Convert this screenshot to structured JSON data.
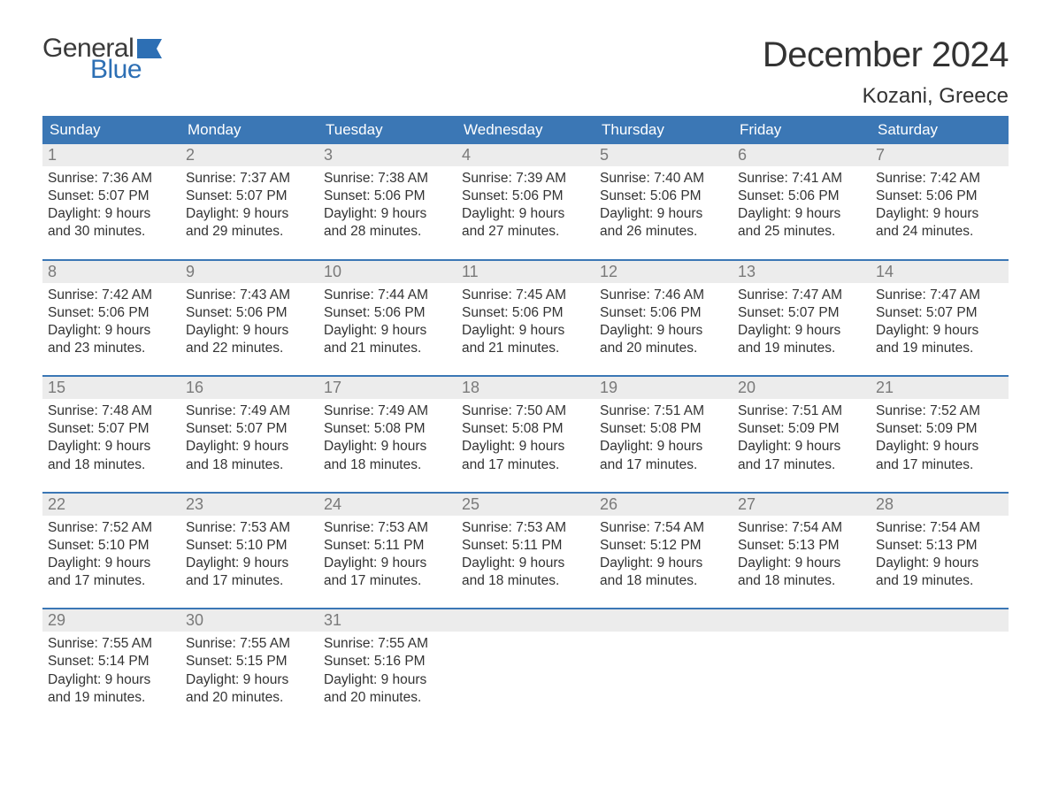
{
  "brand": {
    "text_general": "General",
    "text_blue": "Blue",
    "general_color": "#3a3a3a",
    "blue_color": "#2d6fb4",
    "flag_color": "#2d6fb4"
  },
  "title": "December 2024",
  "location": "Kozani, Greece",
  "colors": {
    "header_bg": "#3b77b5",
    "header_text": "#ffffff",
    "daynum_strip_bg": "#ececec",
    "daynum_text": "#7a7a7a",
    "body_text": "#333333",
    "week_divider": "#3b77b5",
    "page_bg": "#ffffff"
  },
  "typography": {
    "title_fontsize": 40,
    "location_fontsize": 24,
    "weekday_fontsize": 17,
    "daynum_fontsize": 18,
    "body_fontsize": 15.5,
    "logo_fontsize": 30,
    "font_family": "Arial"
  },
  "weekdays": [
    "Sunday",
    "Monday",
    "Tuesday",
    "Wednesday",
    "Thursday",
    "Friday",
    "Saturday"
  ],
  "weeks": [
    {
      "days": [
        {
          "num": "1",
          "sunrise": "Sunrise: 7:36 AM",
          "sunset": "Sunset: 5:07 PM",
          "daylight1": "Daylight: 9 hours",
          "daylight2": "and 30 minutes."
        },
        {
          "num": "2",
          "sunrise": "Sunrise: 7:37 AM",
          "sunset": "Sunset: 5:07 PM",
          "daylight1": "Daylight: 9 hours",
          "daylight2": "and 29 minutes."
        },
        {
          "num": "3",
          "sunrise": "Sunrise: 7:38 AM",
          "sunset": "Sunset: 5:06 PM",
          "daylight1": "Daylight: 9 hours",
          "daylight2": "and 28 minutes."
        },
        {
          "num": "4",
          "sunrise": "Sunrise: 7:39 AM",
          "sunset": "Sunset: 5:06 PM",
          "daylight1": "Daylight: 9 hours",
          "daylight2": "and 27 minutes."
        },
        {
          "num": "5",
          "sunrise": "Sunrise: 7:40 AM",
          "sunset": "Sunset: 5:06 PM",
          "daylight1": "Daylight: 9 hours",
          "daylight2": "and 26 minutes."
        },
        {
          "num": "6",
          "sunrise": "Sunrise: 7:41 AM",
          "sunset": "Sunset: 5:06 PM",
          "daylight1": "Daylight: 9 hours",
          "daylight2": "and 25 minutes."
        },
        {
          "num": "7",
          "sunrise": "Sunrise: 7:42 AM",
          "sunset": "Sunset: 5:06 PM",
          "daylight1": "Daylight: 9 hours",
          "daylight2": "and 24 minutes."
        }
      ]
    },
    {
      "days": [
        {
          "num": "8",
          "sunrise": "Sunrise: 7:42 AM",
          "sunset": "Sunset: 5:06 PM",
          "daylight1": "Daylight: 9 hours",
          "daylight2": "and 23 minutes."
        },
        {
          "num": "9",
          "sunrise": "Sunrise: 7:43 AM",
          "sunset": "Sunset: 5:06 PM",
          "daylight1": "Daylight: 9 hours",
          "daylight2": "and 22 minutes."
        },
        {
          "num": "10",
          "sunrise": "Sunrise: 7:44 AM",
          "sunset": "Sunset: 5:06 PM",
          "daylight1": "Daylight: 9 hours",
          "daylight2": "and 21 minutes."
        },
        {
          "num": "11",
          "sunrise": "Sunrise: 7:45 AM",
          "sunset": "Sunset: 5:06 PM",
          "daylight1": "Daylight: 9 hours",
          "daylight2": "and 21 minutes."
        },
        {
          "num": "12",
          "sunrise": "Sunrise: 7:46 AM",
          "sunset": "Sunset: 5:06 PM",
          "daylight1": "Daylight: 9 hours",
          "daylight2": "and 20 minutes."
        },
        {
          "num": "13",
          "sunrise": "Sunrise: 7:47 AM",
          "sunset": "Sunset: 5:07 PM",
          "daylight1": "Daylight: 9 hours",
          "daylight2": "and 19 minutes."
        },
        {
          "num": "14",
          "sunrise": "Sunrise: 7:47 AM",
          "sunset": "Sunset: 5:07 PM",
          "daylight1": "Daylight: 9 hours",
          "daylight2": "and 19 minutes."
        }
      ]
    },
    {
      "days": [
        {
          "num": "15",
          "sunrise": "Sunrise: 7:48 AM",
          "sunset": "Sunset: 5:07 PM",
          "daylight1": "Daylight: 9 hours",
          "daylight2": "and 18 minutes."
        },
        {
          "num": "16",
          "sunrise": "Sunrise: 7:49 AM",
          "sunset": "Sunset: 5:07 PM",
          "daylight1": "Daylight: 9 hours",
          "daylight2": "and 18 minutes."
        },
        {
          "num": "17",
          "sunrise": "Sunrise: 7:49 AM",
          "sunset": "Sunset: 5:08 PM",
          "daylight1": "Daylight: 9 hours",
          "daylight2": "and 18 minutes."
        },
        {
          "num": "18",
          "sunrise": "Sunrise: 7:50 AM",
          "sunset": "Sunset: 5:08 PM",
          "daylight1": "Daylight: 9 hours",
          "daylight2": "and 17 minutes."
        },
        {
          "num": "19",
          "sunrise": "Sunrise: 7:51 AM",
          "sunset": "Sunset: 5:08 PM",
          "daylight1": "Daylight: 9 hours",
          "daylight2": "and 17 minutes."
        },
        {
          "num": "20",
          "sunrise": "Sunrise: 7:51 AM",
          "sunset": "Sunset: 5:09 PM",
          "daylight1": "Daylight: 9 hours",
          "daylight2": "and 17 minutes."
        },
        {
          "num": "21",
          "sunrise": "Sunrise: 7:52 AM",
          "sunset": "Sunset: 5:09 PM",
          "daylight1": "Daylight: 9 hours",
          "daylight2": "and 17 minutes."
        }
      ]
    },
    {
      "days": [
        {
          "num": "22",
          "sunrise": "Sunrise: 7:52 AM",
          "sunset": "Sunset: 5:10 PM",
          "daylight1": "Daylight: 9 hours",
          "daylight2": "and 17 minutes."
        },
        {
          "num": "23",
          "sunrise": "Sunrise: 7:53 AM",
          "sunset": "Sunset: 5:10 PM",
          "daylight1": "Daylight: 9 hours",
          "daylight2": "and 17 minutes."
        },
        {
          "num": "24",
          "sunrise": "Sunrise: 7:53 AM",
          "sunset": "Sunset: 5:11 PM",
          "daylight1": "Daylight: 9 hours",
          "daylight2": "and 17 minutes."
        },
        {
          "num": "25",
          "sunrise": "Sunrise: 7:53 AM",
          "sunset": "Sunset: 5:11 PM",
          "daylight1": "Daylight: 9 hours",
          "daylight2": "and 18 minutes."
        },
        {
          "num": "26",
          "sunrise": "Sunrise: 7:54 AM",
          "sunset": "Sunset: 5:12 PM",
          "daylight1": "Daylight: 9 hours",
          "daylight2": "and 18 minutes."
        },
        {
          "num": "27",
          "sunrise": "Sunrise: 7:54 AM",
          "sunset": "Sunset: 5:13 PM",
          "daylight1": "Daylight: 9 hours",
          "daylight2": "and 18 minutes."
        },
        {
          "num": "28",
          "sunrise": "Sunrise: 7:54 AM",
          "sunset": "Sunset: 5:13 PM",
          "daylight1": "Daylight: 9 hours",
          "daylight2": "and 19 minutes."
        }
      ]
    },
    {
      "days": [
        {
          "num": "29",
          "sunrise": "Sunrise: 7:55 AM",
          "sunset": "Sunset: 5:14 PM",
          "daylight1": "Daylight: 9 hours",
          "daylight2": "and 19 minutes."
        },
        {
          "num": "30",
          "sunrise": "Sunrise: 7:55 AM",
          "sunset": "Sunset: 5:15 PM",
          "daylight1": "Daylight: 9 hours",
          "daylight2": "and 20 minutes."
        },
        {
          "num": "31",
          "sunrise": "Sunrise: 7:55 AM",
          "sunset": "Sunset: 5:16 PM",
          "daylight1": "Daylight: 9 hours",
          "daylight2": "and 20 minutes."
        },
        {
          "empty": true
        },
        {
          "empty": true
        },
        {
          "empty": true
        },
        {
          "empty": true
        }
      ]
    }
  ]
}
